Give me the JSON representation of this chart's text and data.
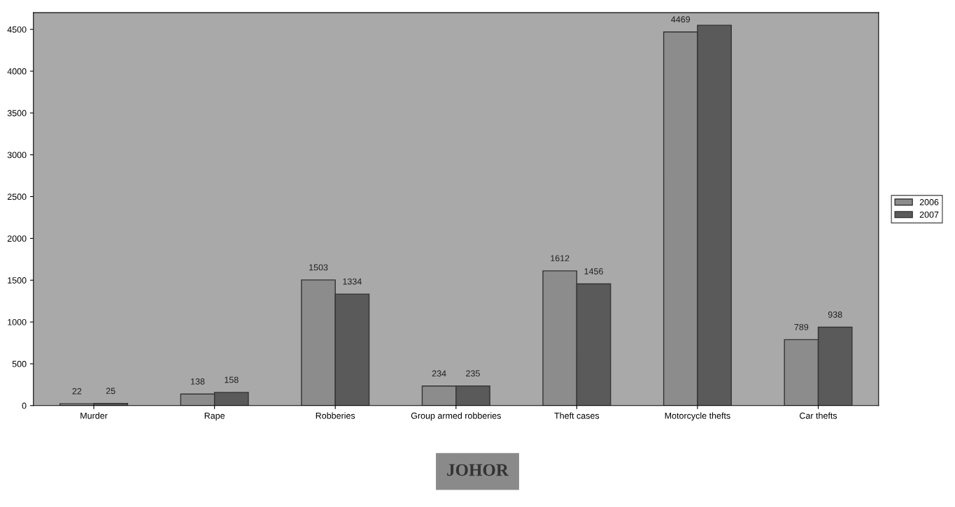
{
  "chart_data": {
    "type": "bar",
    "categories": [
      "Murder",
      "Rape",
      "Robberies",
      "Group armed robberies",
      "Theft cases",
      "Motorcycle thefts",
      "Car thefts"
    ],
    "series": [
      {
        "name": "2006",
        "color": "#8c8c8c",
        "values": [
          22,
          138,
          1503,
          234,
          1612,
          4469,
          789
        ],
        "value_labels": [
          "22",
          "138",
          "1503",
          "234",
          "1612",
          "4469",
          "789"
        ]
      },
      {
        "name": "2007",
        "color": "#5a5a5a",
        "values": [
          25,
          158,
          1334,
          235,
          1456,
          4550,
          938
        ],
        "value_labels": [
          "25",
          "158",
          "1334",
          "235",
          "1456",
          null,
          "938"
        ]
      }
    ],
    "ylim": [
      0,
      4700
    ],
    "yticks": [
      0,
      500,
      1000,
      1500,
      2000,
      2500,
      3000,
      3500,
      4000,
      4500
    ],
    "grid": false,
    "legend": "right",
    "annotations": [
      "JOHOR"
    ]
  }
}
